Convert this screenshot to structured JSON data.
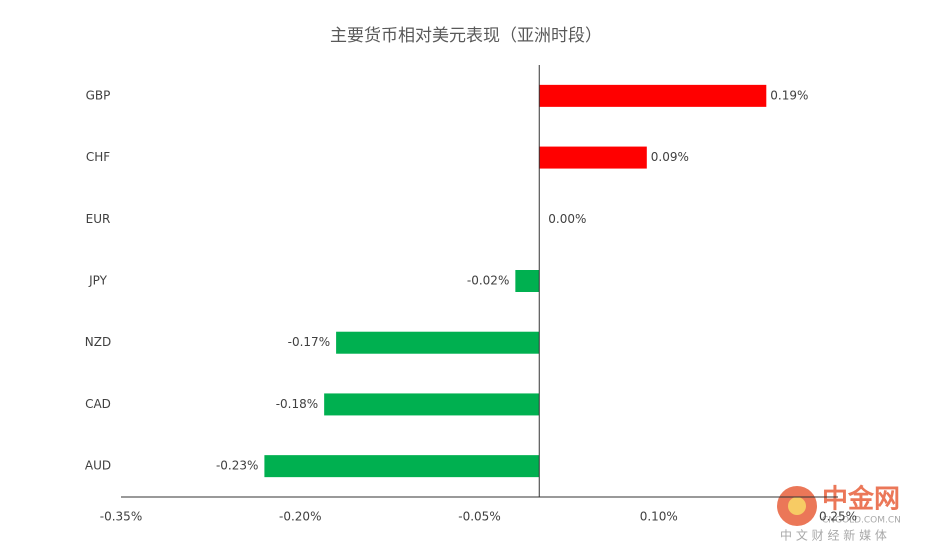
{
  "chart_data": {
    "type": "hbar",
    "title": "主要货币相对美元表现（亚洲时段）",
    "categories": [
      "GBP",
      "CHF",
      "EUR",
      "JPY",
      "NZD",
      "CAD",
      "AUD"
    ],
    "values": [
      0.19,
      0.09,
      0.0,
      -0.02,
      -0.17,
      -0.18,
      -0.23
    ],
    "value_labels": [
      "0.19%",
      "0.09%",
      "0.00%",
      "-0.02%",
      "-0.17%",
      "-0.18%",
      "-0.23%"
    ],
    "colors": [
      "#ff0000",
      "#ff0000",
      "#ff0000",
      "#00b050",
      "#00b050",
      "#00b050",
      "#00b050"
    ],
    "xlim": [
      -0.35,
      0.25
    ],
    "xticks": [
      {
        "value": -0.35,
        "label": "-0.35%"
      },
      {
        "value": -0.2,
        "label": "-0.20%"
      },
      {
        "value": -0.05,
        "label": "-0.05%"
      },
      {
        "value": 0.1,
        "label": "0.10%"
      },
      {
        "value": 0.25,
        "label": "0.25%"
      }
    ],
    "grid": false
  },
  "watermark": {
    "name": "中金网",
    "domain": "CNGOLD.COM.CN",
    "slogan": "中 文 财 经 新 媒 体"
  }
}
